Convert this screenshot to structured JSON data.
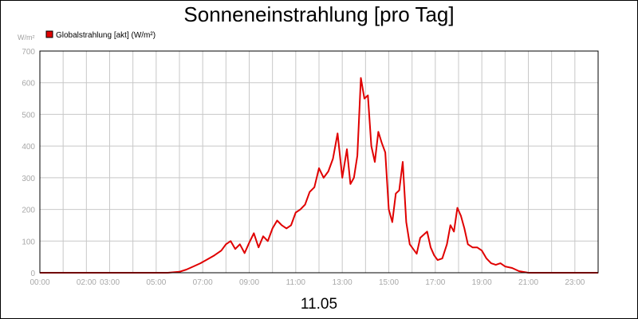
{
  "chart_data": {
    "type": "line",
    "title": "Sonneneinstrahlung [pro Tag]",
    "ylabel": "W/m²",
    "xlabel": "11.05",
    "xlim": [
      0,
      24
    ],
    "ylim": [
      0,
      700
    ],
    "y_ticks": [
      0,
      100,
      200,
      300,
      400,
      500,
      600,
      700
    ],
    "x_ticks": [
      {
        "x": 0,
        "label": "00:00"
      },
      {
        "x": 2,
        "label": "02:00"
      },
      {
        "x": 3,
        "label": "03:00"
      },
      {
        "x": 5,
        "label": "05:00"
      },
      {
        "x": 7,
        "label": "07:00"
      },
      {
        "x": 9,
        "label": "09:00"
      },
      {
        "x": 11,
        "label": "11:00"
      },
      {
        "x": 13,
        "label": "13:00"
      },
      {
        "x": 15,
        "label": "15:00"
      },
      {
        "x": 17,
        "label": "17:00"
      },
      {
        "x": 19,
        "label": "19:00"
      },
      {
        "x": 21,
        "label": "21:00"
      },
      {
        "x": 23,
        "label": "23:00"
      }
    ],
    "grid": true,
    "legend_position": "top-left",
    "series": [
      {
        "name": "Globalstrahlung [akt] (W/m²)",
        "color": "#e00000",
        "x": [
          0,
          5.5,
          6.0,
          6.3,
          6.6,
          6.9,
          7.2,
          7.5,
          7.8,
          8.0,
          8.2,
          8.4,
          8.6,
          8.8,
          9.0,
          9.2,
          9.4,
          9.6,
          9.8,
          10.0,
          10.2,
          10.4,
          10.6,
          10.8,
          11.0,
          11.2,
          11.4,
          11.6,
          11.8,
          12.0,
          12.2,
          12.4,
          12.6,
          12.8,
          13.0,
          13.2,
          13.35,
          13.5,
          13.65,
          13.8,
          13.95,
          14.1,
          14.25,
          14.4,
          14.55,
          14.7,
          14.85,
          15.0,
          15.15,
          15.3,
          15.45,
          15.6,
          15.75,
          15.9,
          16.05,
          16.2,
          16.35,
          16.5,
          16.65,
          16.8,
          16.95,
          17.1,
          17.3,
          17.5,
          17.65,
          17.8,
          17.95,
          18.1,
          18.25,
          18.4,
          18.6,
          18.8,
          19.0,
          19.2,
          19.4,
          19.6,
          19.8,
          20.0,
          20.3,
          20.6,
          21.0,
          22.0,
          24.0
        ],
        "values": [
          0,
          0,
          3,
          10,
          20,
          30,
          42,
          55,
          70,
          90,
          100,
          75,
          90,
          62,
          95,
          125,
          80,
          115,
          100,
          140,
          165,
          150,
          140,
          150,
          190,
          200,
          215,
          255,
          270,
          330,
          300,
          320,
          360,
          440,
          300,
          390,
          280,
          300,
          370,
          615,
          550,
          560,
          400,
          350,
          445,
          410,
          380,
          200,
          160,
          250,
          260,
          350,
          160,
          90,
          75,
          60,
          110,
          120,
          130,
          80,
          55,
          40,
          45,
          90,
          150,
          130,
          205,
          180,
          140,
          90,
          80,
          80,
          70,
          45,
          30,
          25,
          30,
          20,
          15,
          5,
          0,
          0,
          0
        ]
      }
    ]
  }
}
